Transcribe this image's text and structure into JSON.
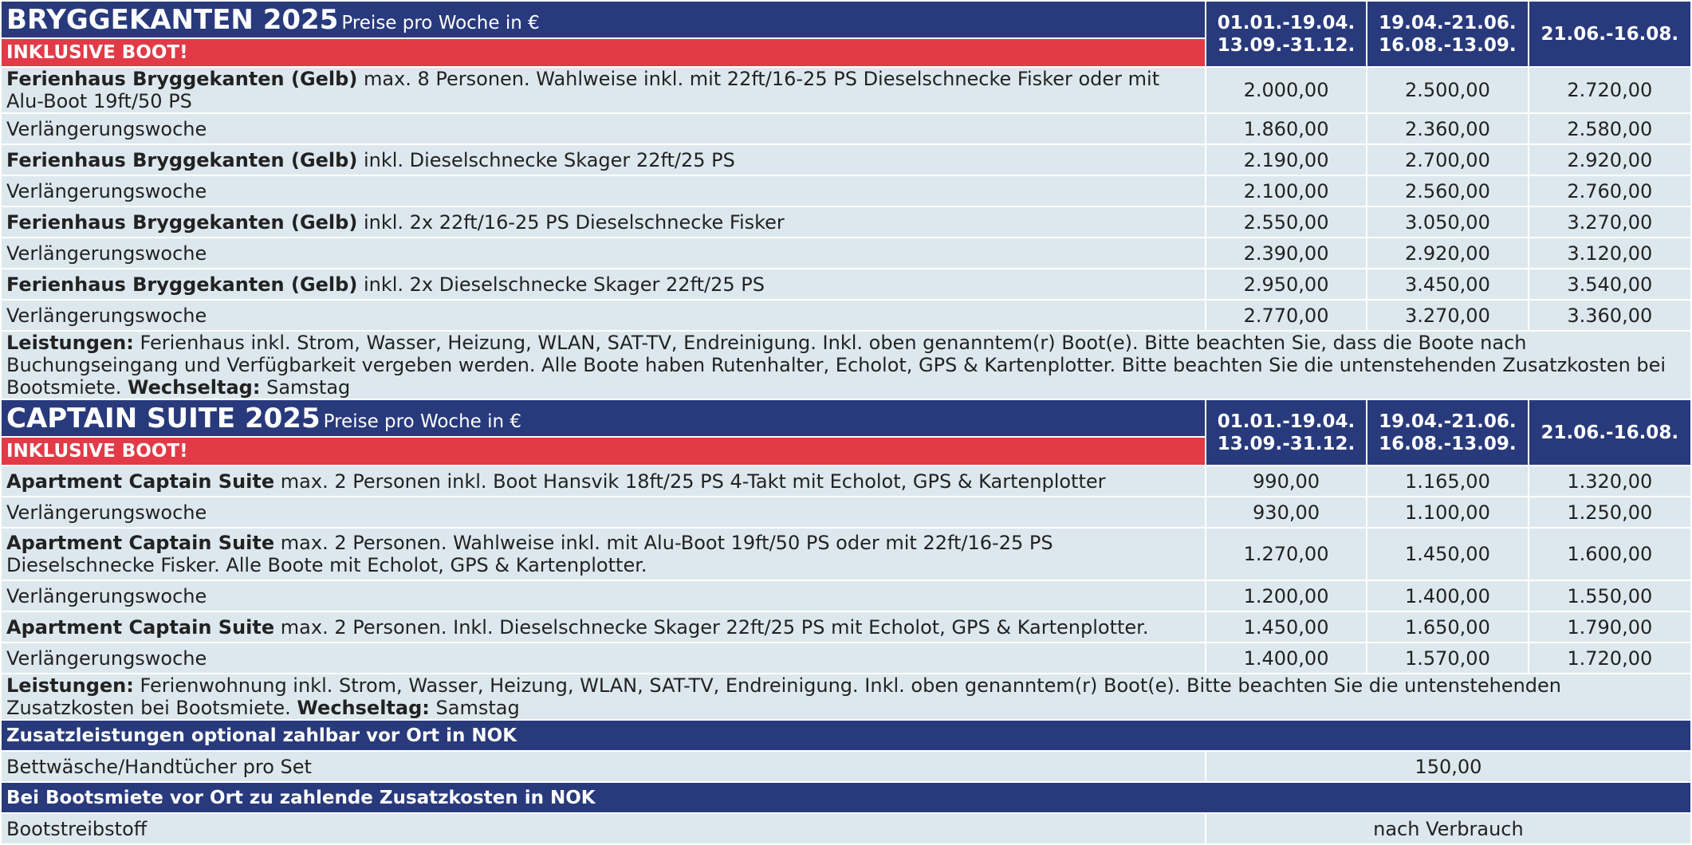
{
  "sections": [
    {
      "title": "BRYGGEKANTEN 2025",
      "subtitle": "Preise pro Woche in €",
      "banner": "INKLUSIVE BOOT!",
      "periods": [
        {
          "line1": "01.01.-19.04.",
          "line2": "13.09.-31.12."
        },
        {
          "line1": "19.04.-21.06.",
          "line2": "16.08.-13.09."
        },
        {
          "line1": "21.06.-16.08.",
          "line2": ""
        }
      ],
      "rows": [
        {
          "name": "Ferienhaus Bryggekanten (Gelb)",
          "text": "max. 8 Personen. Wahlweise inkl. mit 22ft/16-25 PS Dieselschnecke Fisker oder mit Alu-Boot 19ft/50 PS",
          "prices": [
            "2.000,00",
            "2.500,00",
            "2.720,00"
          ]
        },
        {
          "name": "",
          "text": "Verlängerungswoche",
          "prices": [
            "1.860,00",
            "2.360,00",
            "2.580,00"
          ]
        },
        {
          "name": "Ferienhaus Bryggekanten (Gelb)",
          "text": "inkl. Dieselschnecke Skager 22ft/25 PS",
          "prices": [
            "2.190,00",
            "2.700,00",
            "2.920,00"
          ]
        },
        {
          "name": "",
          "text": "Verlängerungswoche",
          "prices": [
            "2.100,00",
            "2.560,00",
            "2.760,00"
          ]
        },
        {
          "name": "Ferienhaus Bryggekanten (Gelb)",
          "text": "inkl. 2x 22ft/16-25 PS Dieselschnecke Fisker",
          "prices": [
            "2.550,00",
            "3.050,00",
            "3.270,00"
          ]
        },
        {
          "name": "",
          "text": "Verlängerungswoche",
          "prices": [
            "2.390,00",
            "2.920,00",
            "3.120,00"
          ]
        },
        {
          "name": "Ferienhaus Bryggekanten (Gelb)",
          "text": "inkl. 2x Dieselschnecke Skager 22ft/25 PS",
          "prices": [
            "2.950,00",
            "3.450,00",
            "3.540,00"
          ]
        },
        {
          "name": "",
          "text": "Verlängerungswoche",
          "prices": [
            "2.770,00",
            "3.270,00",
            "3.360,00"
          ]
        }
      ],
      "leistungen_label": "Leistungen:",
      "leistungen_text": "Ferienhaus inkl. Strom, Wasser, Heizung, WLAN, SAT-TV, Endreinigung. Inkl. oben genanntem(r) Boot(e). Bitte beachten Sie, dass die Boote nach Buchungseingang und Verfügbarkeit vergeben werden. Alle Boote haben Rutenhalter, Echolot, GPS & Kartenplotter. Bitte beachten Sie die untenstehenden Zusatzkosten bei Bootsmiete.",
      "wechseltag_label": "Wechseltag:",
      "wechseltag_value": "Samstag"
    },
    {
      "title": "CAPTAIN SUITE 2025",
      "subtitle": "Preise pro Woche in €",
      "banner": "INKLUSIVE BOOT!",
      "periods": [
        {
          "line1": "01.01.-19.04.",
          "line2": "13.09.-31.12."
        },
        {
          "line1": "19.04.-21.06.",
          "line2": "16.08.-13.09."
        },
        {
          "line1": "21.06.-16.08.",
          "line2": ""
        }
      ],
      "rows": [
        {
          "name": "Apartment Captain Suite",
          "text": "max. 2 Personen inkl. Boot Hansvik 18ft/25 PS 4-Takt mit Echolot, GPS & Kartenplotter",
          "prices": [
            "990,00",
            "1.165,00",
            "1.320,00"
          ]
        },
        {
          "name": "",
          "text": "Verlängerungswoche",
          "prices": [
            "930,00",
            "1.100,00",
            "1.250,00"
          ]
        },
        {
          "name": "Apartment Captain Suite",
          "text": "max. 2 Personen. Wahlweise inkl. mit Alu-Boot 19ft/50 PS oder mit 22ft/16-25 PS Dieselschnecke Fisker. Alle Boote mit Echolot, GPS & Kartenplotter.",
          "prices": [
            "1.270,00",
            "1.450,00",
            "1.600,00"
          ]
        },
        {
          "name": "",
          "text": "Verlängerungswoche",
          "prices": [
            "1.200,00",
            "1.400,00",
            "1.550,00"
          ]
        },
        {
          "name": "Apartment Captain Suite",
          "text": "max. 2 Personen. Inkl. Dieselschnecke Skager 22ft/25 PS mit Echolot, GPS & Kartenplotter.",
          "prices": [
            "1.450,00",
            "1.650,00",
            "1.790,00"
          ]
        },
        {
          "name": "",
          "text": "Verlängerungswoche",
          "prices": [
            "1.400,00",
            "1.570,00",
            "1.720,00"
          ]
        }
      ],
      "leistungen_label": "Leistungen:",
      "leistungen_text": "Ferienwohnung inkl. Strom, Wasser, Heizung, WLAN, SAT-TV, Endreinigung. Inkl. oben genanntem(r) Boot(e). Bitte beachten Sie die untenstehenden Zusatzkosten bei Bootsmiete.",
      "wechseltag_label": "Wechseltag:",
      "wechseltag_value": "Samstag"
    }
  ],
  "extras": {
    "header": "Zusatzleistungen optional zahlbar vor Ort in NOK",
    "items": [
      {
        "label": "Bettwäsche/Handtücher pro Set",
        "value": "150,00"
      }
    ]
  },
  "boat_costs": {
    "header": "Bei Bootsmiete vor Ort zu zahlende Zusatzkosten in NOK",
    "items": [
      {
        "label": "Bootstreibstoff",
        "value": "nach Verbrauch"
      }
    ]
  }
}
